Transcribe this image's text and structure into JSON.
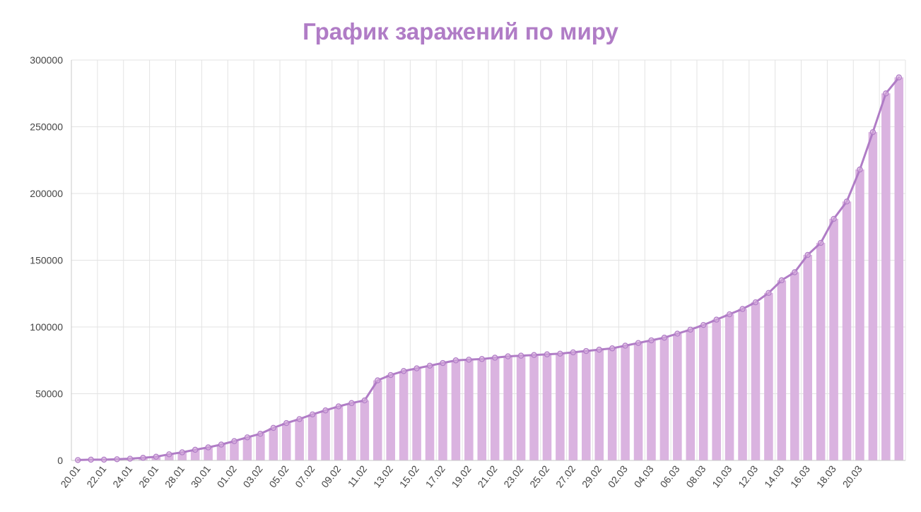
{
  "chart_data": {
    "type": "bar",
    "title": "График заражений по миру",
    "colors": {
      "title": "#b07cc6",
      "bar": "#dab3e0",
      "line": "#b07cc6",
      "grid": "#e3e3e3",
      "axis": "#c8c8c8"
    },
    "ylim": [
      0,
      300000
    ],
    "yticks": [
      "0",
      "50000",
      "100000",
      "150000",
      "200000",
      "250000",
      "300000"
    ],
    "ytick_values": [
      0,
      50000,
      100000,
      150000,
      200000,
      250000,
      300000
    ],
    "xtick_labels": [
      "20.01",
      "22.01",
      "24.01",
      "26.01",
      "28.01",
      "30.01",
      "01.02",
      "03.02",
      "05.02",
      "07.02",
      "09.02",
      "11.02",
      "13.02",
      "15.02",
      "17.02",
      "19.02",
      "21.02",
      "23.02",
      "25.02",
      "27.02",
      "29.02",
      "02.03",
      "04.03",
      "06.03",
      "08.03",
      "10.03",
      "12.03",
      "14.03",
      "16.03",
      "18.03",
      "20.03"
    ],
    "grid": true,
    "series": [
      {
        "type": "bar",
        "values": [
          300,
          600,
          600,
          900,
          1300,
          2000,
          2800,
          4600,
          6100,
          8000,
          9800,
          11900,
          14500,
          17300,
          20000,
          24400,
          28000,
          31000,
          34500,
          37500,
          40500,
          43000,
          45000,
          60000,
          64000,
          67000,
          69000,
          71000,
          73000,
          75000,
          75500,
          76000,
          77000,
          78000,
          78500,
          79000,
          79500,
          80000,
          81000,
          82000,
          83000,
          84000,
          86000,
          88000,
          90000,
          92000,
          95000,
          98000,
          101500,
          105500,
          109500,
          113500,
          118500,
          125500,
          135000,
          141000,
          154000,
          163000,
          181000,
          194000,
          218000,
          246000,
          275000,
          287000
        ]
      },
      {
        "type": "line",
        "values": [
          300,
          600,
          600,
          900,
          1300,
          2000,
          2800,
          4600,
          6100,
          8000,
          9800,
          11900,
          14500,
          17300,
          20000,
          24400,
          28000,
          31000,
          34500,
          37500,
          40500,
          43000,
          45000,
          60000,
          64000,
          67000,
          69000,
          71000,
          73000,
          75000,
          75500,
          76000,
          77000,
          78000,
          78500,
          79000,
          79500,
          80000,
          81000,
          82000,
          83000,
          84000,
          86000,
          88000,
          90000,
          92000,
          95000,
          98000,
          101500,
          105500,
          109500,
          113500,
          118500,
          125500,
          135000,
          141000,
          154000,
          163000,
          181000,
          194000,
          218000,
          246000,
          275000,
          287000
        ]
      }
    ]
  }
}
